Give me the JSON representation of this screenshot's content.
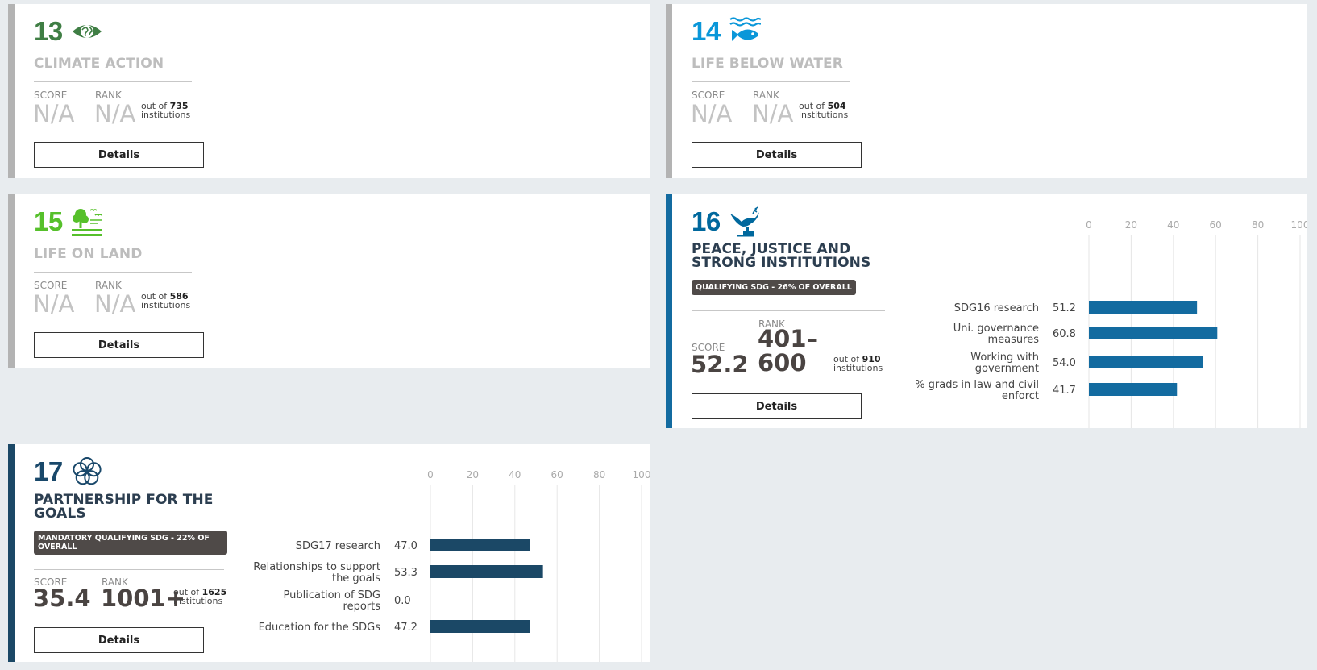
{
  "cards": {
    "c13": {
      "number": "13",
      "number_color": "#3f7e44",
      "icon": "eye-globe-icon",
      "title": "CLIMATE ACTION",
      "score_label": "SCORE",
      "score": "N/A",
      "rank_label": "RANK",
      "rank": "N/A",
      "out_of_prefix": "out of",
      "out_of": "735",
      "out_of_suffix": "institutions",
      "button": "Details"
    },
    "c14": {
      "number": "14",
      "number_color": "#0a97d9",
      "icon": "fish-waves-icon",
      "title": "LIFE BELOW WATER",
      "score_label": "SCORE",
      "score": "N/A",
      "rank_label": "RANK",
      "rank": "N/A",
      "out_of_prefix": "out of",
      "out_of": "504",
      "out_of_suffix": "institutions",
      "button": "Details"
    },
    "c15": {
      "number": "15",
      "number_color": "#56c02b",
      "icon": "tree-birds-icon",
      "title": "LIFE ON LAND",
      "score_label": "SCORE",
      "score": "N/A",
      "rank_label": "RANK",
      "rank": "N/A",
      "out_of_prefix": "out of",
      "out_of": "586",
      "out_of_suffix": "institutions",
      "button": "Details"
    },
    "c16": {
      "number": "16",
      "number_color": "#00689d",
      "icon": "dove-gavel-icon",
      "title_line1": "PEACE, JUSTICE AND",
      "title_line2": "STRONG INSTITUTIONS",
      "badge": "QUALIFYING SDG - 26% OF OVERALL",
      "score_label": "SCORE",
      "score": "52.2",
      "rank_label": "RANK",
      "rank_line1": "401–",
      "rank_line2": "600",
      "out_of_prefix": "out of",
      "out_of": "910",
      "out_of_suffix": "institutions",
      "button": "Details"
    },
    "c17": {
      "number": "17",
      "number_color": "#19486a",
      "icon": "flower-rings-icon",
      "title_line1": "PARTNERSHIP FOR THE",
      "title_line2": "GOALS",
      "badge_line1": "MANDATORY QUALIFYING SDG - 22% OF",
      "badge_line2": "OVERALL",
      "score_label": "SCORE",
      "score": "35.4",
      "rank_label": "RANK",
      "rank": "1001+",
      "out_of_prefix": "out of",
      "out_of": "1625",
      "out_of_suffix": "institutions",
      "button": "Details"
    }
  },
  "chart_data": [
    {
      "type": "bar",
      "orientation": "horizontal",
      "x_ticks": [
        "0",
        "20",
        "40",
        "60",
        "80",
        "100"
      ],
      "xlim": [
        0,
        100
      ],
      "grid": true,
      "bar_color": "#136ba0",
      "categories": [
        [
          "SDG16 research"
        ],
        [
          "Uni. governance",
          "measures"
        ],
        [
          "Working with",
          "government"
        ],
        [
          "% grads in law and civil",
          "enforct"
        ]
      ],
      "values": [
        51.2,
        60.8,
        54.0,
        41.7
      ],
      "value_labels": [
        "51.2",
        "60.8",
        "54.0",
        "41.7"
      ]
    },
    {
      "type": "bar",
      "orientation": "horizontal",
      "x_ticks": [
        "0",
        "20",
        "40",
        "60",
        "80",
        "100"
      ],
      "xlim": [
        0,
        100
      ],
      "grid": true,
      "bar_color": "#1b4866",
      "categories": [
        [
          "SDG17 research"
        ],
        [
          "Relationships to support",
          "the goals"
        ],
        [
          "Publication of SDG",
          "reports"
        ],
        [
          "Education for the SDGs"
        ]
      ],
      "values": [
        47.0,
        53.3,
        0.0,
        47.2
      ],
      "value_labels": [
        "47.0",
        "53.3",
        "0.0",
        "47.2"
      ]
    }
  ]
}
